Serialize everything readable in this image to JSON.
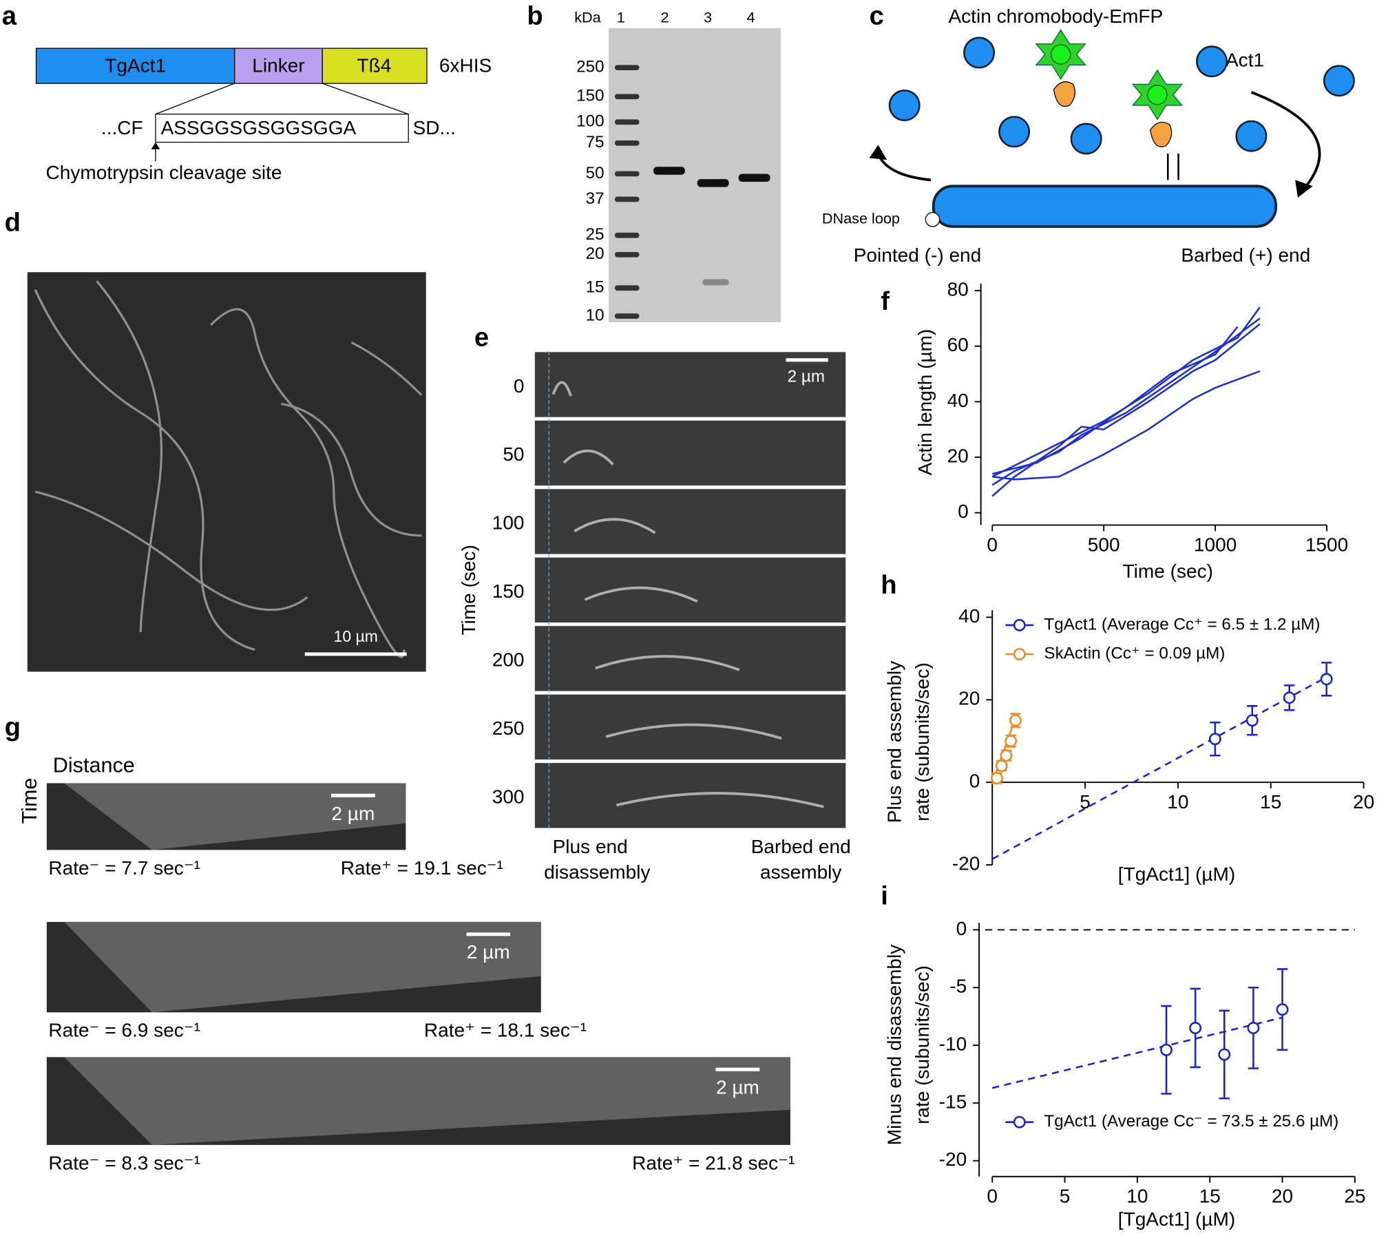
{
  "panels": {
    "a": {
      "letter": "a",
      "segments": [
        "TgAct1",
        "Linker",
        "Tß4"
      ],
      "tag": "6xHIS",
      "seq_left": "...CF",
      "seq_box": "ASSGGSGSGGSGGA",
      "seq_right": "SD...",
      "note": "Chymotrypsin cleavage site"
    },
    "b": {
      "letter": "b",
      "unit": "kDa",
      "lanes": [
        "1",
        "2",
        "3",
        "4"
      ],
      "markers": [
        "250",
        "150",
        "100",
        "75",
        "50",
        "37",
        "25",
        "20",
        "15",
        "10"
      ]
    },
    "c": {
      "letter": "c",
      "title": "Actin chromobody-EmFP",
      "protein": "TgAct1",
      "dnase": "DNase loop",
      "pointed": "Pointed (-) end",
      "barbed": "Barbed (+) end"
    },
    "d": {
      "letter": "d",
      "scale": "10 µm"
    },
    "e": {
      "letter": "e",
      "axis": "Time (sec)",
      "times": [
        "0",
        "50",
        "100",
        "150",
        "200",
        "250",
        "300"
      ],
      "scale": "2 µm",
      "left": [
        "Plus end",
        "disassembly"
      ],
      "right": [
        "Barbed end",
        "assembly"
      ]
    },
    "g": {
      "letter": "g",
      "distance": "Distance",
      "time": "Time",
      "kymographs": [
        {
          "scale": "2 µm",
          "rate_minus": "Rate⁻ = 7.7 sec⁻¹",
          "rate_plus": "Rate⁺ = 19.1 sec⁻¹"
        },
        {
          "scale": "2 µm",
          "rate_minus": "Rate⁻ = 6.9 sec⁻¹",
          "rate_plus": "Rate⁺ = 18.1 sec⁻¹"
        },
        {
          "scale": "2 µm",
          "rate_minus": "Rate⁻ = 8.3 sec⁻¹",
          "rate_plus": "Rate⁺ = 21.8 sec⁻¹"
        }
      ]
    }
  },
  "chart_data": [
    {
      "type": "line",
      "panel": "f",
      "xlabel": "Time (sec)",
      "ylabel": [
        "Actin length (µm)"
      ],
      "xlim": [
        0,
        1500
      ],
      "ylim": [
        0,
        80
      ],
      "xticks": [
        0,
        500,
        1000,
        1500
      ],
      "yticks": [
        0,
        20,
        40,
        60,
        80
      ],
      "series": [
        {
          "color": "#1f2fd0",
          "x": [
            0,
            100,
            300,
            500,
            700,
            900,
            1100,
            1200
          ],
          "values": [
            13,
            17,
            25,
            33,
            43,
            55,
            63,
            74
          ]
        },
        {
          "color": "#1f2fd0",
          "x": [
            0,
            100,
            300,
            400,
            600,
            800,
            1000,
            1200
          ],
          "values": [
            10,
            15,
            22,
            28,
            36,
            47,
            58,
            70
          ]
        },
        {
          "color": "#1f2fd0",
          "x": [
            0,
            100,
            300,
            400,
            500,
            700,
            900,
            1000,
            1200
          ],
          "values": [
            6,
            13,
            24,
            31,
            30,
            40,
            51,
            55,
            68
          ]
        },
        {
          "color": "#1f2fd0",
          "x": [
            0,
            200,
            400,
            600,
            800,
            1000,
            1100
          ],
          "values": [
            14,
            18,
            27,
            38,
            50,
            57,
            67
          ]
        },
        {
          "color": "#1f2fd0",
          "x": [
            0,
            100,
            300,
            500,
            700,
            900,
            1000,
            1200
          ],
          "values": [
            13,
            12,
            13,
            21,
            30,
            41,
            45,
            51
          ]
        }
      ]
    },
    {
      "type": "scatter",
      "panel": "h",
      "xlabel": "[TgAct1] (µM)",
      "ylabel": [
        "Plus end assembly",
        "rate (subunits/sec)"
      ],
      "xlim": [
        0,
        20
      ],
      "ylim": [
        -20,
        40
      ],
      "xticks": [
        5,
        10,
        15,
        20
      ],
      "yticks": [
        -20,
        0,
        20,
        40
      ],
      "series": [
        {
          "name": "TgAct1 (Average Cc⁺ = 6.5 ± 1.2 µM)",
          "color": "#1f1fd6",
          "x": [
            12,
            14,
            16,
            18
          ],
          "values": [
            10.5,
            15,
            20.5,
            25
          ],
          "errors": [
            4,
            3.5,
            3,
            4
          ],
          "fit": {
            "x": [
              0,
              18
            ],
            "values": [
              -18.6,
              25.5
            ]
          },
          "fit_style": "dashed"
        },
        {
          "name": "SkActin (Cc⁺ = 0.09 µM)",
          "color": "#f08a24",
          "x": [
            0.25,
            0.5,
            0.75,
            1,
            1.25
          ],
          "values": [
            1,
            4,
            6.5,
            10,
            15
          ],
          "errors": [
            1.2,
            1.2,
            1.2,
            1.4,
            1.6
          ],
          "fit": {
            "x": [
              0,
              1.25
            ],
            "values": [
              0,
              15.5
            ]
          },
          "fit_style": "solid"
        }
      ]
    },
    {
      "type": "scatter",
      "panel": "i",
      "xlabel": "[TgAct1] (µM)",
      "ylabel": [
        "Minus end disassembly",
        "rate (subunits/sec)"
      ],
      "xlim": [
        0,
        25
      ],
      "ylim": [
        -20,
        0
      ],
      "xticks": [
        0,
        5,
        10,
        15,
        20,
        25
      ],
      "yticks": [
        0,
        -5,
        -10,
        -15,
        -20
      ],
      "zero_line": true,
      "series": [
        {
          "name": "TgAct1 (Average Cc⁻ = 73.5 ± 25.6 µM)",
          "color": "#1f1fd6",
          "x": [
            12,
            14,
            16,
            18,
            20
          ],
          "values": [
            -10.4,
            -8.5,
            -10.8,
            -8.5,
            -6.9
          ],
          "errors": [
            3.8,
            3.4,
            3.8,
            3.5,
            3.5
          ],
          "fit": {
            "x": [
              0,
              20
            ],
            "values": [
              -13.7,
              -7.6
            ]
          },
          "fit_style": "dashed"
        }
      ]
    }
  ]
}
